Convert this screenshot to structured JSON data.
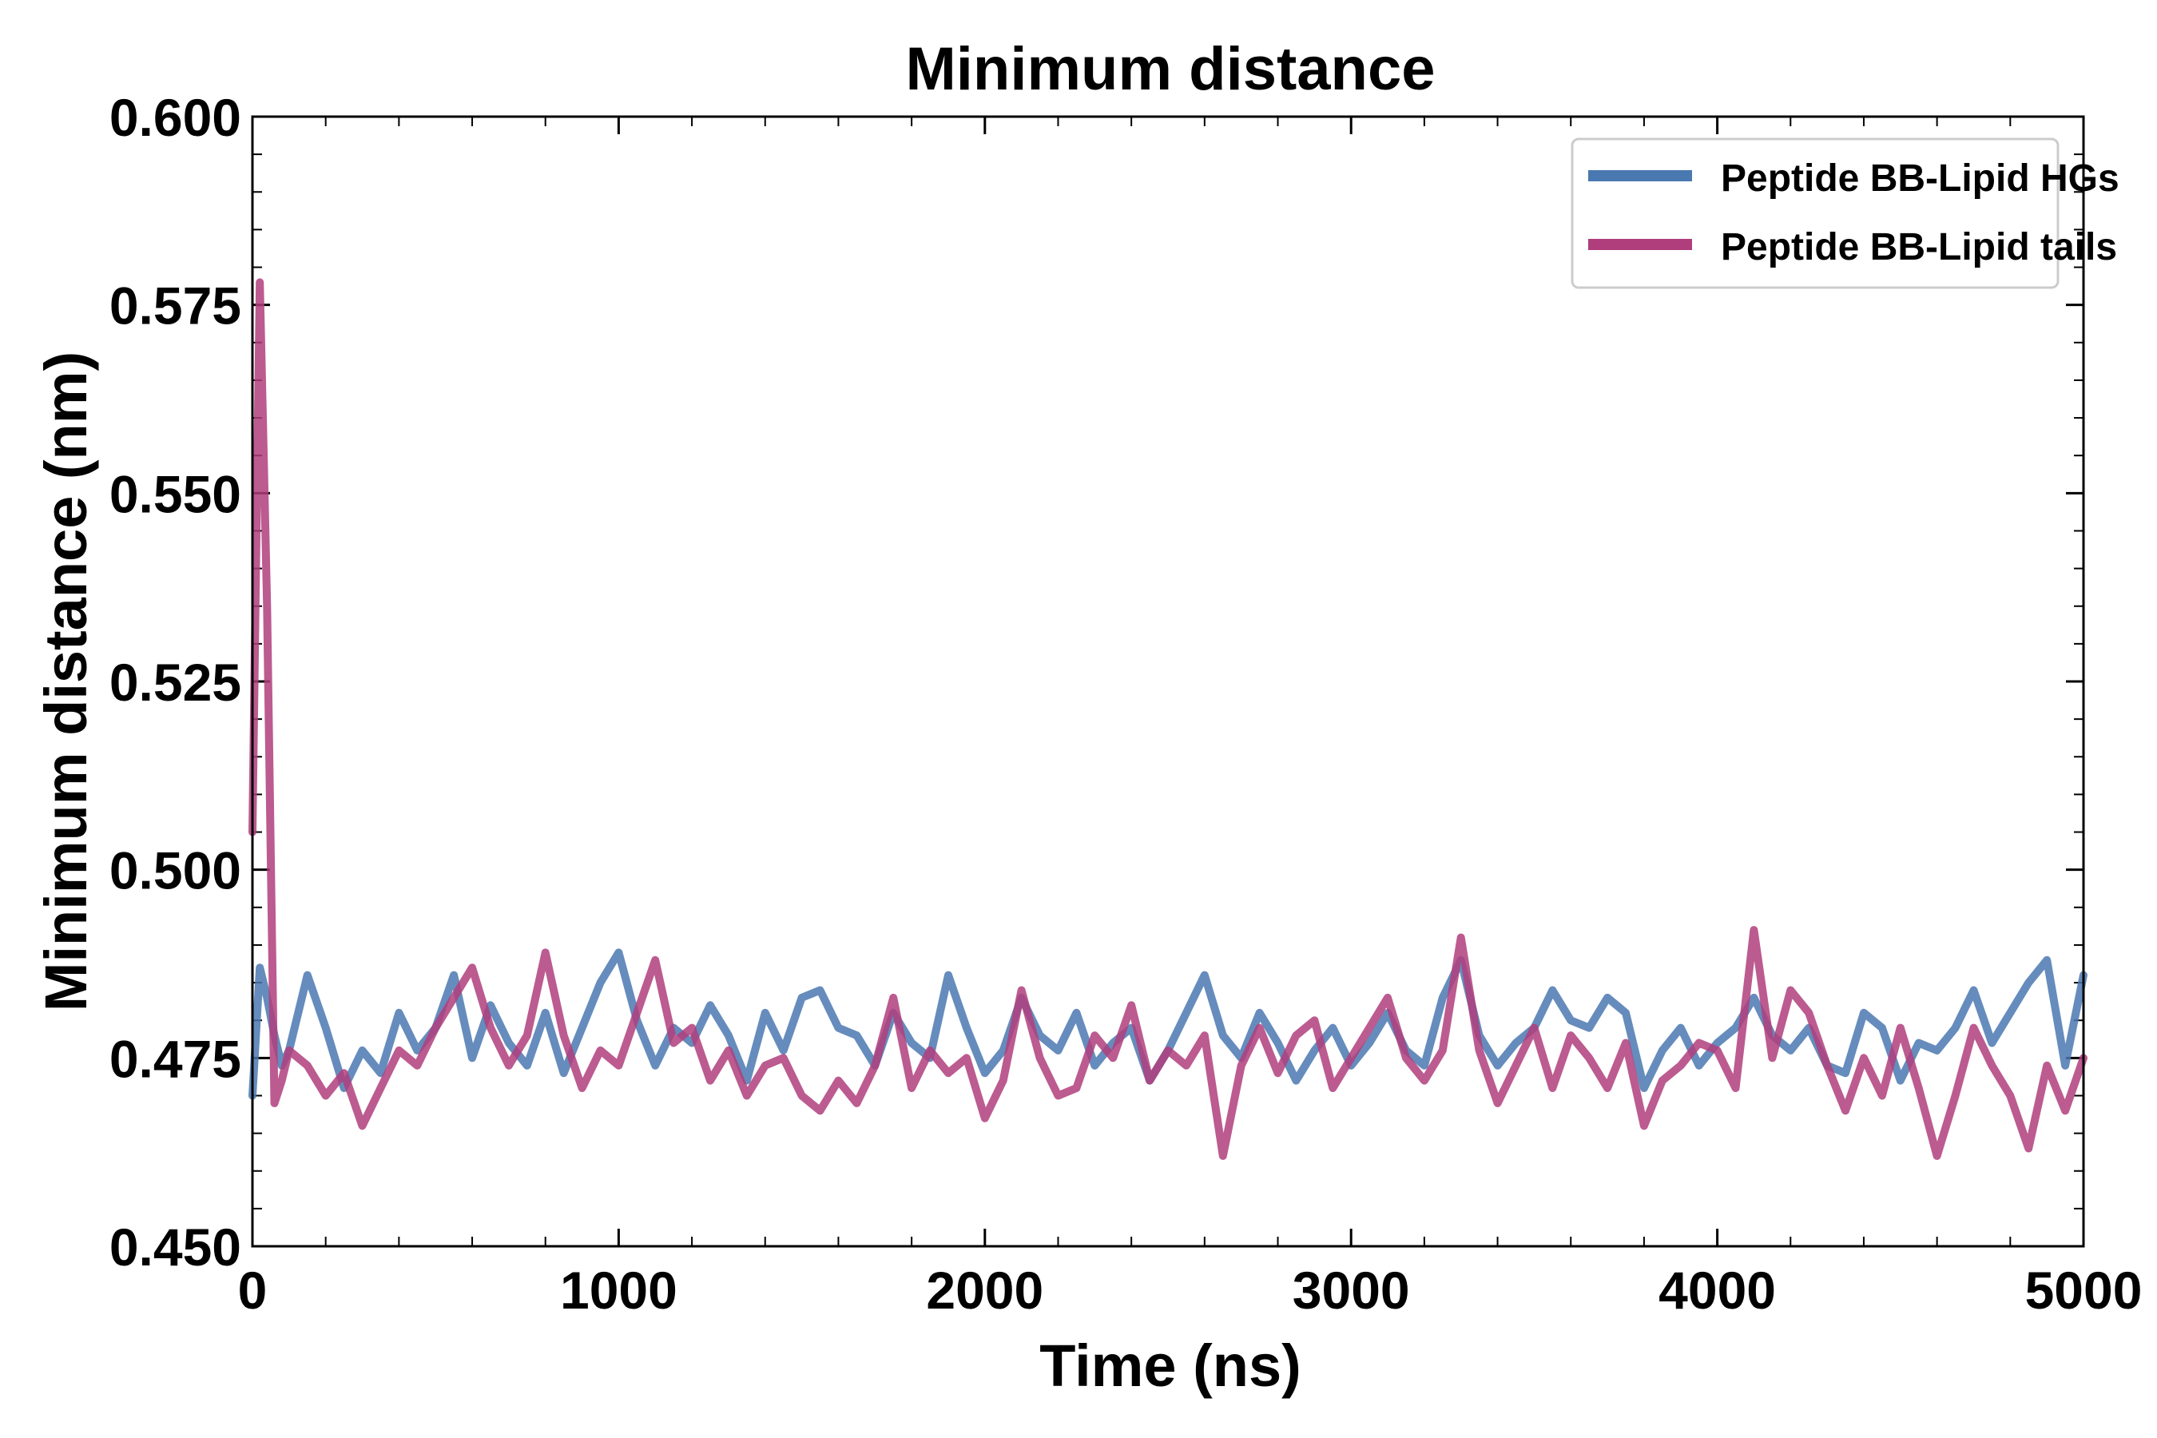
{
  "chart_data": {
    "type": "line",
    "title": "Minimum distance",
    "xlabel": "Time (ns)",
    "ylabel": "Minimum distance (nm)",
    "xlim": [
      0,
      5000
    ],
    "ylim": [
      0.45,
      0.6
    ],
    "xticks": [
      0,
      1000,
      2000,
      3000,
      4000,
      5000
    ],
    "xtick_labels": [
      "0",
      "1000",
      "2000",
      "3000",
      "4000",
      "5000"
    ],
    "yticks": [
      0.45,
      0.475,
      0.5,
      0.525,
      0.55,
      0.575,
      0.6
    ],
    "ytick_labels": [
      "0.450",
      "0.475",
      "0.500",
      "0.525",
      "0.550",
      "0.575",
      "0.600"
    ],
    "legend_position": "top-right",
    "x": [
      0,
      20,
      40,
      60,
      80,
      100,
      150,
      200,
      250,
      300,
      350,
      400,
      450,
      500,
      550,
      600,
      650,
      700,
      750,
      800,
      850,
      900,
      950,
      1000,
      1050,
      1100,
      1150,
      1200,
      1250,
      1300,
      1350,
      1400,
      1450,
      1500,
      1550,
      1600,
      1650,
      1700,
      1750,
      1800,
      1850,
      1900,
      1950,
      2000,
      2050,
      2100,
      2150,
      2200,
      2250,
      2300,
      2350,
      2400,
      2450,
      2500,
      2550,
      2600,
      2650,
      2700,
      2750,
      2800,
      2850,
      2900,
      2950,
      3000,
      3050,
      3100,
      3150,
      3200,
      3250,
      3300,
      3350,
      3400,
      3450,
      3500,
      3550,
      3600,
      3650,
      3700,
      3750,
      3800,
      3850,
      3900,
      3950,
      4000,
      4050,
      4100,
      4150,
      4200,
      4250,
      4300,
      4350,
      4400,
      4450,
      4500,
      4550,
      4600,
      4650,
      4700,
      4750,
      4800,
      4850,
      4900,
      4950,
      5000
    ],
    "series": [
      {
        "name": "Peptide BB-Lipid HGs",
        "color": "#4a78b0",
        "values": [
          0.47,
          0.487,
          0.483,
          0.478,
          0.474,
          0.476,
          0.486,
          0.479,
          0.471,
          0.476,
          0.473,
          0.481,
          0.476,
          0.479,
          0.486,
          0.475,
          0.482,
          0.477,
          0.474,
          0.481,
          0.473,
          0.479,
          0.485,
          0.489,
          0.48,
          0.474,
          0.479,
          0.477,
          0.482,
          0.478,
          0.472,
          0.481,
          0.476,
          0.483,
          0.484,
          0.479,
          0.478,
          0.474,
          0.481,
          0.477,
          0.475,
          0.486,
          0.479,
          0.473,
          0.476,
          0.483,
          0.478,
          0.476,
          0.481,
          0.474,
          0.477,
          0.479,
          0.472,
          0.476,
          0.481,
          0.486,
          0.478,
          0.475,
          0.481,
          0.477,
          0.472,
          0.476,
          0.479,
          0.474,
          0.477,
          0.481,
          0.476,
          0.474,
          0.483,
          0.488,
          0.478,
          0.474,
          0.477,
          0.479,
          0.484,
          0.48,
          0.479,
          0.483,
          0.481,
          0.471,
          0.476,
          0.479,
          0.474,
          0.477,
          0.479,
          0.483,
          0.478,
          0.476,
          0.479,
          0.474,
          0.473,
          0.481,
          0.479,
          0.472,
          0.477,
          0.476,
          0.479,
          0.484,
          0.477,
          0.481,
          0.485,
          0.488,
          0.474,
          0.486
        ]
      },
      {
        "name": "Peptide BB-Lipid tails",
        "color": "#b03e7c",
        "values": [
          0.505,
          0.578,
          0.535,
          0.469,
          0.472,
          0.476,
          0.474,
          0.47,
          0.473,
          0.466,
          0.471,
          0.476,
          0.474,
          0.479,
          0.483,
          0.487,
          0.479,
          0.474,
          0.478,
          0.489,
          0.478,
          0.471,
          0.476,
          0.474,
          0.481,
          0.488,
          0.477,
          0.479,
          0.472,
          0.476,
          0.47,
          0.474,
          0.475,
          0.47,
          0.468,
          0.472,
          0.469,
          0.474,
          0.483,
          0.471,
          0.476,
          0.473,
          0.475,
          0.467,
          0.472,
          0.484,
          0.475,
          0.47,
          0.471,
          0.478,
          0.475,
          0.482,
          0.472,
          0.476,
          0.474,
          0.478,
          0.462,
          0.474,
          0.479,
          0.473,
          0.478,
          0.48,
          0.471,
          0.475,
          0.479,
          0.483,
          0.475,
          0.472,
          0.476,
          0.491,
          0.476,
          0.469,
          0.474,
          0.479,
          0.471,
          0.478,
          0.475,
          0.471,
          0.477,
          0.466,
          0.472,
          0.474,
          0.477,
          0.476,
          0.471,
          0.492,
          0.475,
          0.484,
          0.481,
          0.474,
          0.468,
          0.475,
          0.47,
          0.479,
          0.471,
          0.462,
          0.47,
          0.479,
          0.474,
          0.47,
          0.463,
          0.474,
          0.468,
          0.475
        ]
      }
    ]
  }
}
